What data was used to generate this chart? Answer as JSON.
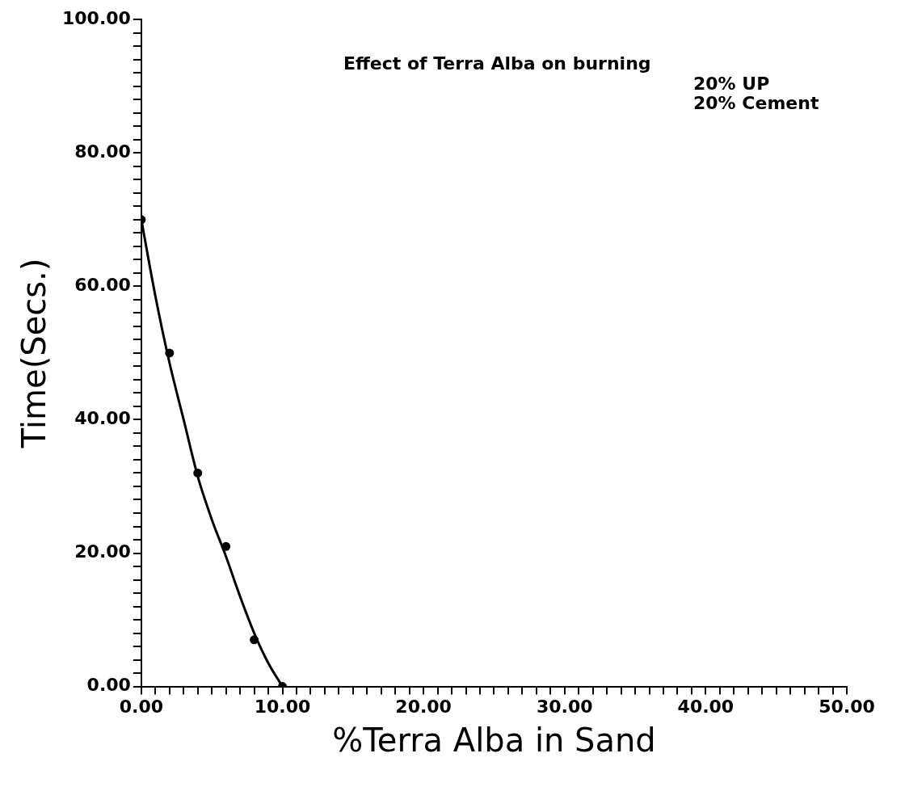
{
  "chart_data": {
    "type": "scatter",
    "title": "Effect of Terra Alba on burning",
    "annotations": [
      "20% UP",
      "20% Cement"
    ],
    "xlabel": "%Terra Alba in Sand",
    "ylabel": "Time(Secs.)",
    "series": [
      {
        "type": "scatter",
        "color": "#000000",
        "marker": "circle",
        "x": [
          0,
          2,
          4,
          6,
          8,
          10
        ],
        "values": [
          70,
          50,
          32,
          21,
          7,
          0
        ]
      },
      {
        "type": "line",
        "color": "#000000",
        "marker": "none",
        "line_style": "solid",
        "x": [
          0,
          1,
          2,
          3,
          4,
          5,
          6,
          7,
          8,
          9,
          10
        ],
        "values": [
          70,
          58.5,
          48.5,
          40,
          31.5,
          25,
          19.5,
          13.5,
          8,
          3.5,
          0
        ]
      }
    ],
    "xlim": [
      0,
      50
    ],
    "ylim": [
      0,
      100
    ],
    "xticks": [
      {
        "value": 0,
        "label": "0.00"
      },
      {
        "value": 1,
        "label": null
      },
      {
        "value": 2,
        "label": null
      },
      {
        "value": 3,
        "label": null
      },
      {
        "value": 4,
        "label": null
      },
      {
        "value": 5,
        "label": null
      },
      {
        "value": 6,
        "label": null
      },
      {
        "value": 7,
        "label": null
      },
      {
        "value": 8,
        "label": null
      },
      {
        "value": 9,
        "label": null
      },
      {
        "value": 10,
        "label": "10.00"
      },
      {
        "value": 11,
        "label": null
      },
      {
        "value": 12,
        "label": null
      },
      {
        "value": 13,
        "label": null
      },
      {
        "value": 14,
        "label": null
      },
      {
        "value": 15,
        "label": null
      },
      {
        "value": 16,
        "label": null
      },
      {
        "value": 17,
        "label": null
      },
      {
        "value": 18,
        "label": null
      },
      {
        "value": 19,
        "label": null
      },
      {
        "value": 20,
        "label": "20.00"
      },
      {
        "value": 21,
        "label": null
      },
      {
        "value": 22,
        "label": null
      },
      {
        "value": 23,
        "label": null
      },
      {
        "value": 24,
        "label": null
      },
      {
        "value": 25,
        "label": null
      },
      {
        "value": 26,
        "label": null
      },
      {
        "value": 27,
        "label": null
      },
      {
        "value": 28,
        "label": null
      },
      {
        "value": 29,
        "label": null
      },
      {
        "value": 30,
        "label": "30.00"
      },
      {
        "value": 31,
        "label": null
      },
      {
        "value": 32,
        "label": null
      },
      {
        "value": 33,
        "label": null
      },
      {
        "value": 34,
        "label": null
      },
      {
        "value": 35,
        "label": null
      },
      {
        "value": 36,
        "label": null
      },
      {
        "value": 37,
        "label": null
      },
      {
        "value": 38,
        "label": null
      },
      {
        "value": 39,
        "label": null
      },
      {
        "value": 40,
        "label": "40.00"
      },
      {
        "value": 41,
        "label": null
      },
      {
        "value": 42,
        "label": null
      },
      {
        "value": 43,
        "label": null
      },
      {
        "value": 44,
        "label": null
      },
      {
        "value": 45,
        "label": null
      },
      {
        "value": 46,
        "label": null
      },
      {
        "value": 47,
        "label": null
      },
      {
        "value": 48,
        "label": null
      },
      {
        "value": 49,
        "label": null
      },
      {
        "value": 50,
        "label": "50.00"
      }
    ],
    "yticks": [
      {
        "value": 0,
        "label": "0.00"
      },
      {
        "value": 2,
        "label": null
      },
      {
        "value": 4,
        "label": null
      },
      {
        "value": 6,
        "label": null
      },
      {
        "value": 8,
        "label": null
      },
      {
        "value": 10,
        "label": null
      },
      {
        "value": 12,
        "label": null
      },
      {
        "value": 14,
        "label": null
      },
      {
        "value": 16,
        "label": null
      },
      {
        "value": 18,
        "label": null
      },
      {
        "value": 20,
        "label": "20.00"
      },
      {
        "value": 22,
        "label": null
      },
      {
        "value": 24,
        "label": null
      },
      {
        "value": 26,
        "label": null
      },
      {
        "value": 28,
        "label": null
      },
      {
        "value": 30,
        "label": null
      },
      {
        "value": 32,
        "label": null
      },
      {
        "value": 34,
        "label": null
      },
      {
        "value": 36,
        "label": null
      },
      {
        "value": 38,
        "label": null
      },
      {
        "value": 40,
        "label": "40.00"
      },
      {
        "value": 42,
        "label": null
      },
      {
        "value": 44,
        "label": null
      },
      {
        "value": 46,
        "label": null
      },
      {
        "value": 48,
        "label": null
      },
      {
        "value": 50,
        "label": null
      },
      {
        "value": 52,
        "label": null
      },
      {
        "value": 54,
        "label": null
      },
      {
        "value": 56,
        "label": null
      },
      {
        "value": 58,
        "label": null
      },
      {
        "value": 60,
        "label": "60.00"
      },
      {
        "value": 62,
        "label": null
      },
      {
        "value": 64,
        "label": null
      },
      {
        "value": 66,
        "label": null
      },
      {
        "value": 68,
        "label": null
      },
      {
        "value": 70,
        "label": null
      },
      {
        "value": 72,
        "label": null
      },
      {
        "value": 74,
        "label": null
      },
      {
        "value": 76,
        "label": null
      },
      {
        "value": 78,
        "label": null
      },
      {
        "value": 80,
        "label": "80.00"
      },
      {
        "value": 82,
        "label": null
      },
      {
        "value": 84,
        "label": null
      },
      {
        "value": 86,
        "label": null
      },
      {
        "value": 88,
        "label": null
      },
      {
        "value": 90,
        "label": null
      },
      {
        "value": 92,
        "label": null
      },
      {
        "value": 94,
        "label": null
      },
      {
        "value": 96,
        "label": null
      },
      {
        "value": 98,
        "label": null
      },
      {
        "value": 100,
        "label": "100.00"
      }
    ],
    "grid": false,
    "legend": false
  }
}
